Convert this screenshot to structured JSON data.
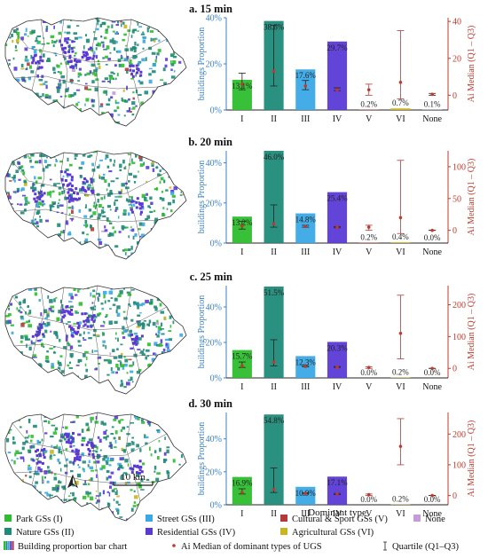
{
  "colors": {
    "I": "#2ebd2e",
    "II": "#1f8a78",
    "III": "#3aa9e6",
    "IV": "#5a3ad6",
    "V": "#b33a3a",
    "VI": "#c9b61e",
    "None": "#c79bd6",
    "left_axis": "#3b82c4",
    "right_axis": "#c0392b",
    "map_outline": "#333333"
  },
  "chart_data": [
    {
      "type": "bar",
      "title": "a. 15 min",
      "categories": [
        "I",
        "II",
        "III",
        "IV",
        "V",
        "VI",
        "None"
      ],
      "values": [
        13.1,
        38.6,
        17.6,
        29.7,
        0.2,
        0.7,
        0.1
      ],
      "value_labels": [
        "13.1%",
        "38.6%",
        "17.6%",
        "29.7%",
        "0.2%",
        "0.7%",
        "0.1%"
      ],
      "ylabel": "buildings Proportion",
      "ylim": [
        0,
        40
      ],
      "yticks": [
        "0%",
        "20%",
        "40%"
      ],
      "ylabel_right": "Ai Median (Q1 – Q3)",
      "ylim_right": [
        -8,
        42
      ],
      "yticks_right": [
        "0",
        "20",
        "40"
      ],
      "median": [
        6,
        13,
        5,
        3,
        3,
        7,
        0.5
      ],
      "q1": [
        3,
        5,
        3,
        2.5,
        0,
        -2,
        0
      ],
      "q3": [
        12,
        38,
        8,
        4,
        6,
        35,
        1
      ]
    },
    {
      "type": "bar",
      "title": "b. 20 min",
      "categories": [
        "I",
        "II",
        "III",
        "IV",
        "V",
        "VI",
        "None"
      ],
      "values": [
        13.2,
        46.0,
        14.8,
        25.4,
        0.2,
        0.4,
        0.0
      ],
      "value_labels": [
        "13.2%",
        "46.0%",
        "14.8%",
        "25.4%",
        "0.2%",
        "0.4%",
        "0.0%"
      ],
      "ylabel": "buildings Proportion",
      "ylim": [
        0,
        46
      ],
      "yticks": [
        "0%",
        "20%",
        "40%"
      ],
      "ylabel_right": "Ai Median (Q1 – Q3)",
      "ylim_right": [
        -20,
        125
      ],
      "yticks_right": [
        "0",
        "50",
        "100"
      ],
      "median": [
        7,
        10,
        6,
        5,
        5,
        20,
        0
      ],
      "q1": [
        2,
        5,
        5,
        4,
        0,
        -5,
        0
      ],
      "q3": [
        14,
        40,
        8,
        6,
        8,
        110,
        0
      ]
    },
    {
      "type": "bar",
      "title": "c. 25 min",
      "categories": [
        "I",
        "II",
        "III",
        "IV",
        "V",
        "VI",
        "None"
      ],
      "values": [
        15.7,
        51.5,
        12.3,
        20.3,
        0.0,
        0.2,
        0.0
      ],
      "value_labels": [
        "15.7%",
        "51.5%",
        "12.3%",
        "20.3%",
        "0.0%",
        "0.2%",
        "0.0%"
      ],
      "ylabel": "buildings Proportion",
      "ylim": [
        0,
        52
      ],
      "yticks": [
        "0%",
        "20%",
        "40%"
      ],
      "ylabel_right": "Ai Median (Q1 – Q3)",
      "ylim_right": [
        -30,
        260
      ],
      "yticks_right": [
        "0",
        "100",
        "200"
      ],
      "median": [
        8,
        20,
        6,
        4,
        3,
        110,
        0
      ],
      "q1": [
        3,
        8,
        5,
        3,
        0,
        30,
        0
      ],
      "q3": [
        20,
        90,
        9,
        6,
        5,
        230,
        0
      ]
    },
    {
      "type": "bar",
      "title": "d. 30 min",
      "categories": [
        "I",
        "II",
        "III",
        "IV",
        "V",
        "VI",
        "None"
      ],
      "values": [
        16.9,
        54.8,
        10.9,
        17.1,
        0.0,
        0.2,
        0.0
      ],
      "value_labels": [
        "16.9%",
        "54.8%",
        "10.9%",
        "17.1%",
        "0.0%",
        "0.2%",
        "0.0%"
      ],
      "ylabel": "buildings Proportion",
      "ylim": [
        0,
        56
      ],
      "yticks": [
        "0%",
        "20%",
        "40%"
      ],
      "ylabel_right": "Ai Median (Q1 – Q3)",
      "ylim_right": [
        -30,
        270
      ],
      "yticks_right": [
        "0",
        "100",
        "200"
      ],
      "median": [
        10,
        20,
        7,
        5,
        3,
        160,
        0
      ],
      "q1": [
        5,
        10,
        5,
        3,
        0,
        100,
        0
      ],
      "q3": [
        22,
        90,
        9,
        7,
        5,
        250,
        0
      ]
    }
  ],
  "xlabel": "Dominant type",
  "scale_bar": "10 km",
  "north_arrow": "north-arrow",
  "legend": {
    "items": [
      {
        "label": "Park GSs (I)",
        "key": "I"
      },
      {
        "label": "Street GSs (III)",
        "key": "III"
      },
      {
        "label": "Cultural & Sport GSs (V)",
        "key": "V"
      },
      {
        "label": "None",
        "key": "None"
      },
      {
        "label": "Nature GSs (II)",
        "key": "II"
      },
      {
        "label": "Residential GSs (IV)",
        "key": "IV"
      },
      {
        "label": "Agricultural GSs (VI)",
        "key": "VI"
      }
    ],
    "bar_chart": "Building proportion bar chart",
    "median": "Ai Median of dominant types of UGS",
    "quartile": "Quartile (Q1–Q3)"
  }
}
